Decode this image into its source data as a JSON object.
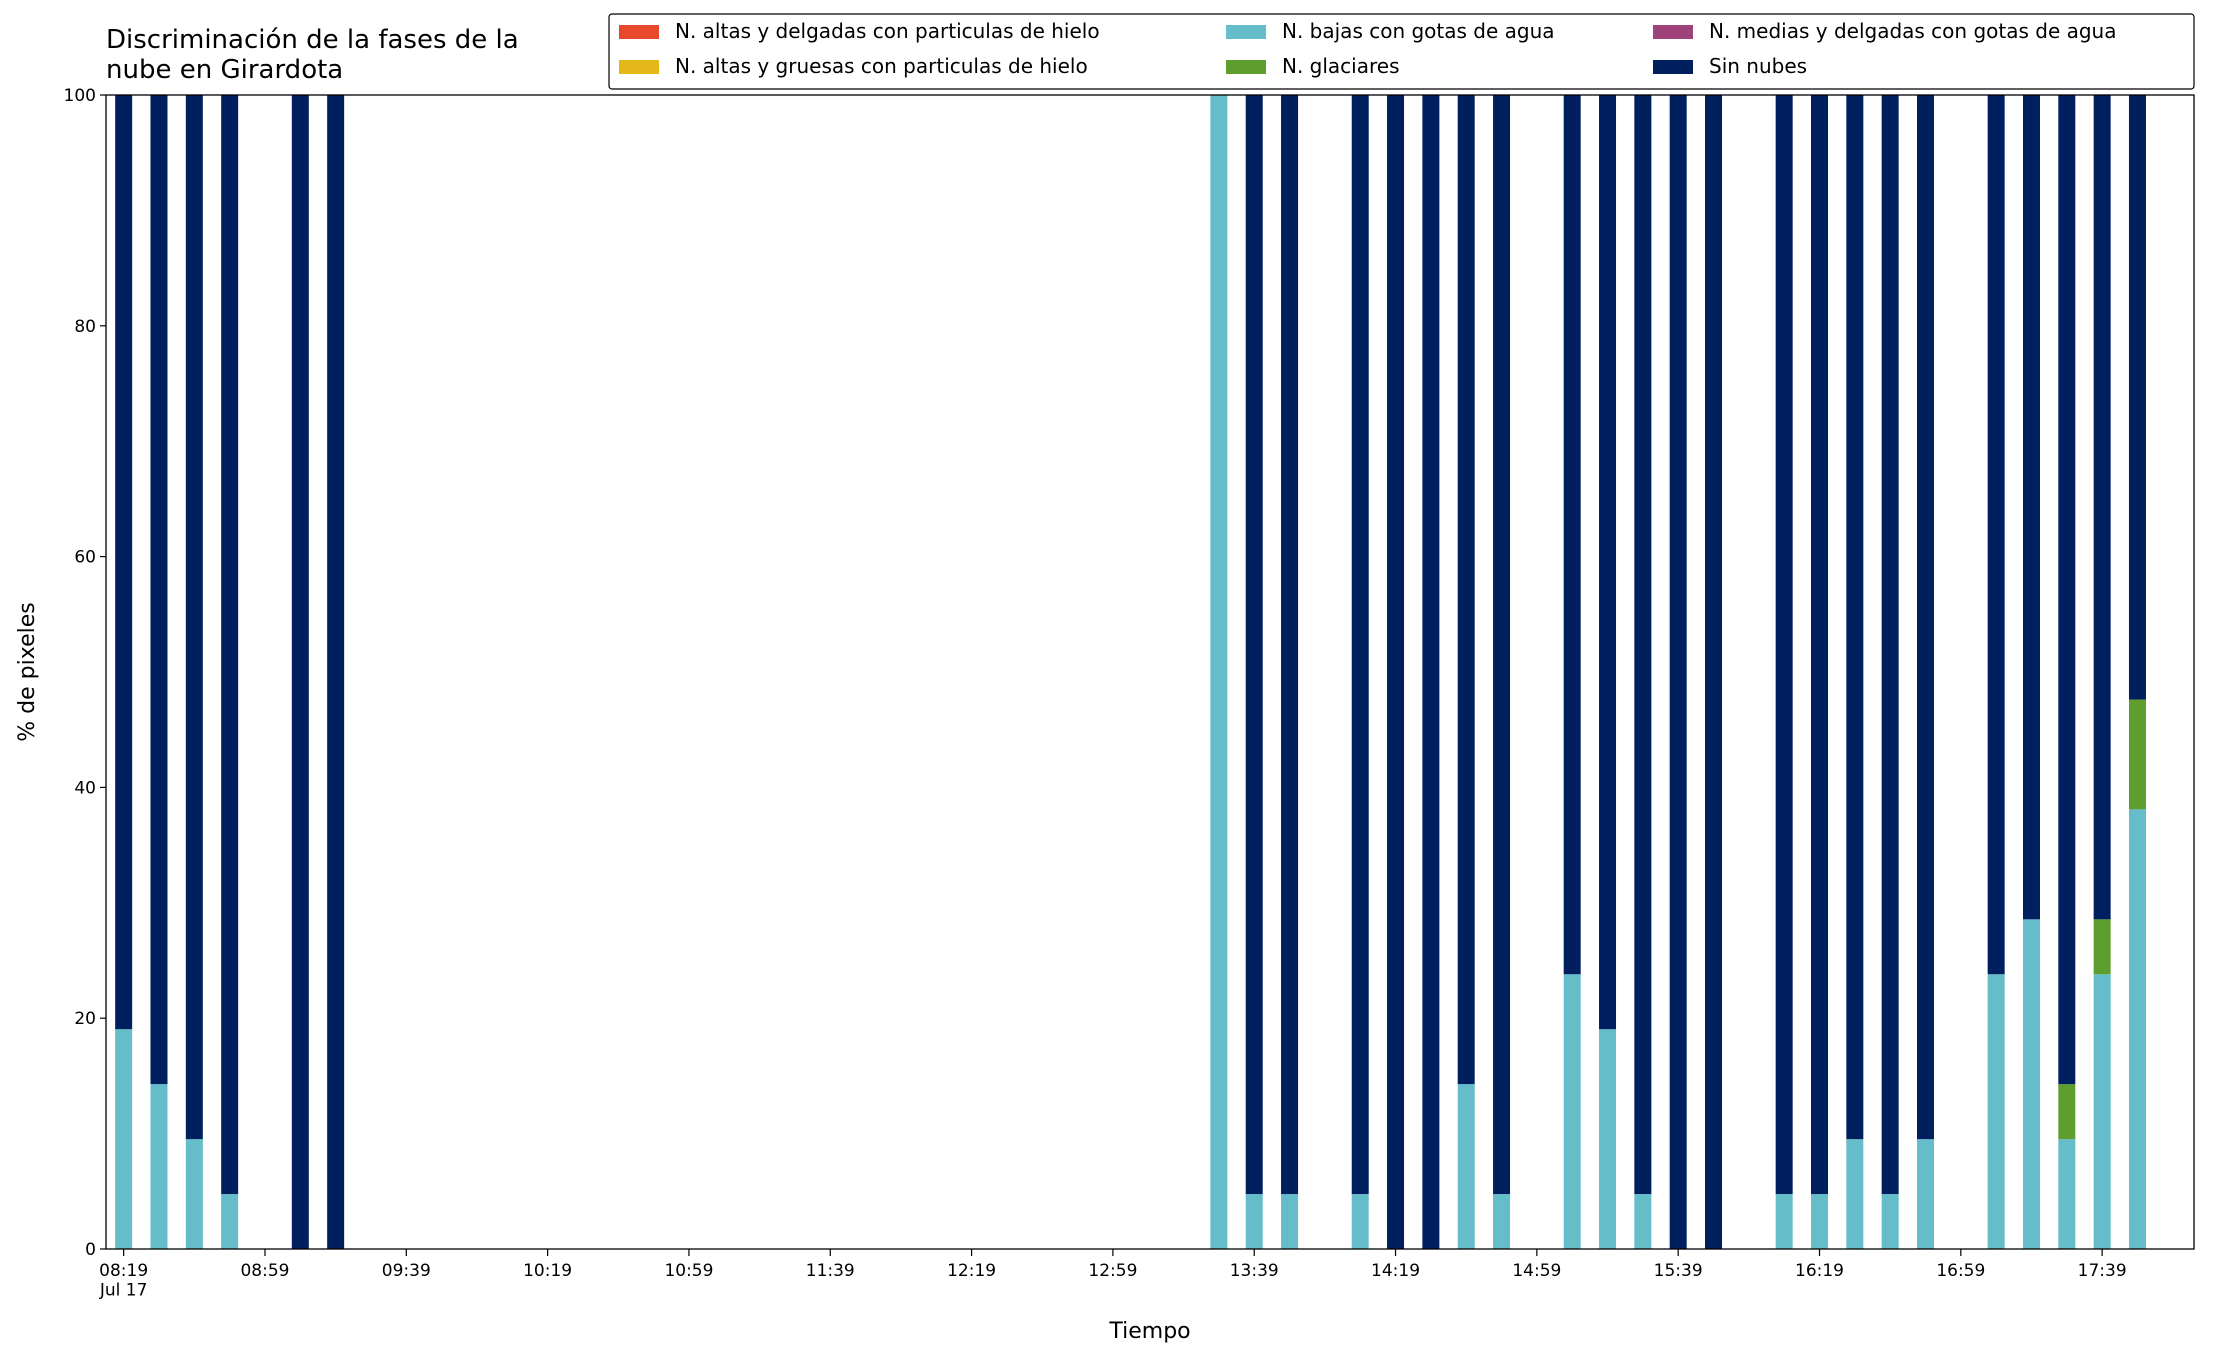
{
  "chart_data": {
    "type": "stacked_bar",
    "title": "Discriminación de la fases de la\nnube en Girardota",
    "xlabel": "Tiempo",
    "ylabel": "% de pixeles",
    "x": [
      "08:19",
      "08:29",
      "08:39",
      "08:49",
      "09:09",
      "09:19",
      "13:29",
      "13:39",
      "13:49",
      "14:09",
      "14:19",
      "14:29",
      "14:39",
      "14:49",
      "15:09",
      "15:19",
      "15:29",
      "15:39",
      "15:49",
      "16:09",
      "16:19",
      "16:29",
      "16:39",
      "16:49",
      "17:09",
      "17:19",
      "17:29",
      "17:39",
      "17:49"
    ],
    "series": [
      {
        "name": "N. altas y delgadas con particulas de hielo",
        "color": "#e8482c",
        "values": [
          0,
          0,
          0,
          0,
          0,
          0,
          0,
          0,
          0,
          0,
          0,
          0,
          0,
          0,
          0,
          0,
          0,
          0,
          0,
          0,
          0,
          0,
          0,
          0,
          0,
          0,
          0,
          0,
          0
        ]
      },
      {
        "name": "N. altas y gruesas con particulas de hielo",
        "color": "#e5b819",
        "values": [
          0,
          0,
          0,
          0,
          0,
          0,
          0,
          0,
          0,
          0,
          0,
          0,
          0,
          0,
          0,
          0,
          0,
          0,
          0,
          0,
          0,
          0,
          0,
          0,
          0,
          0,
          0,
          0,
          0
        ]
      },
      {
        "name": "N. bajas con gotas de agua",
        "color": "#65bdc9",
        "values": [
          19.05,
          14.29,
          9.52,
          4.76,
          0,
          0,
          100,
          4.76,
          4.76,
          4.76,
          0,
          0,
          14.29,
          4.76,
          23.81,
          19.05,
          4.76,
          0,
          0,
          4.76,
          4.76,
          9.52,
          4.76,
          9.52,
          23.81,
          28.57,
          9.52,
          23.81,
          38.1
        ]
      },
      {
        "name": "N. glaciares",
        "color": "#5e9e2e",
        "values": [
          0,
          0,
          0,
          0,
          0,
          0,
          0,
          0,
          0,
          0,
          0,
          0,
          0,
          0,
          0,
          0,
          0,
          0,
          0,
          0,
          0,
          0,
          0,
          0,
          0,
          0,
          4.76,
          4.76,
          9.52
        ]
      },
      {
        "name": "N. medias y delgadas con gotas de agua",
        "color": "#a0427a",
        "values": [
          0,
          0,
          0,
          0,
          0,
          0,
          0,
          0,
          0,
          0,
          0,
          0,
          0,
          0,
          0,
          0,
          0,
          0,
          0,
          0,
          0,
          0,
          0,
          0,
          0,
          0,
          0,
          0,
          0
        ]
      },
      {
        "name": "Sin nubes",
        "color": "#001f5f",
        "values": [
          80.95,
          85.71,
          90.48,
          95.24,
          100,
          100,
          0,
          95.24,
          95.24,
          95.24,
          100,
          100,
          85.71,
          95.24,
          76.19,
          80.95,
          95.24,
          100,
          100,
          95.24,
          95.24,
          90.48,
          95.24,
          90.48,
          76.19,
          71.43,
          85.71,
          71.43,
          52.38
        ]
      }
    ],
    "xlim": [
      "08:14",
      "18:05"
    ],
    "xticks": [
      {
        "value": "08:19",
        "label": "08:19\nJul 17"
      },
      "08:59",
      "09:39",
      "10:19",
      "10:59",
      "11:39",
      "12:19",
      "12:59",
      "13:39",
      "14:19",
      "14:59",
      "15:39",
      "16:19",
      "16:59",
      "17:39"
    ],
    "ylim": [
      0,
      100
    ],
    "yticks": [
      0,
      20,
      40,
      60,
      80,
      100
    ],
    "grid": false,
    "legend": "upper right"
  }
}
